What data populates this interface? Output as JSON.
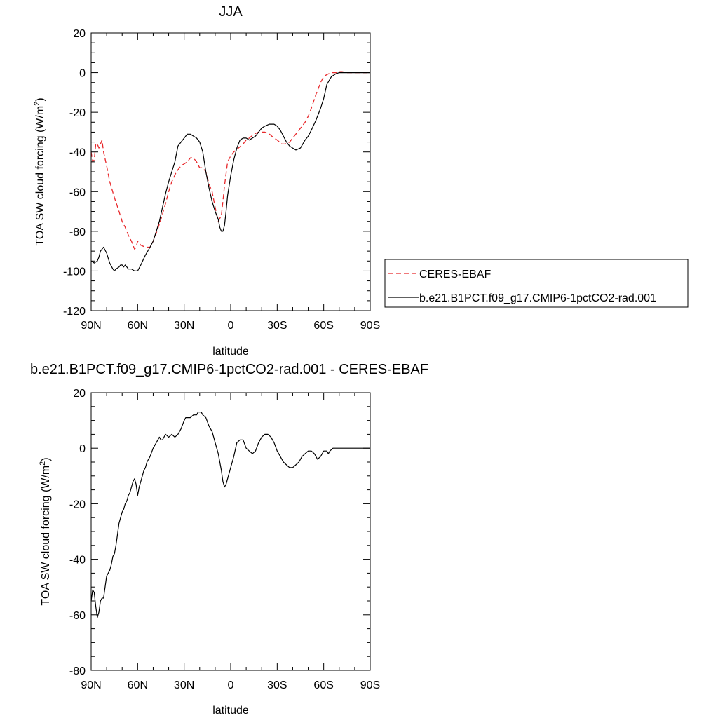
{
  "chart_data": [
    {
      "type": "line",
      "title": "JJA",
      "xlabel": "latitude",
      "ylabel": "TOA SW cloud forcing (W/m²)",
      "ylabel_main": "TOA SW cloud forcing (W/m",
      "ylabel_sup": "2",
      "ylabel_end": ")",
      "xlim": [
        90,
        -90
      ],
      "ylim": [
        -120,
        20
      ],
      "x_ticks": [
        90,
        60,
        30,
        0,
        -30,
        -60,
        -90
      ],
      "x_tick_labels": [
        "90N",
        "60N",
        "30N",
        "0",
        "30S",
        "60S",
        "90S"
      ],
      "y_ticks": [
        20,
        0,
        -20,
        -40,
        -60,
        -80,
        -100,
        -120
      ],
      "y_tick_labels": [
        "20",
        "0",
        "-20",
        "-40",
        "-60",
        "-80",
        "-100",
        "-120"
      ],
      "grid": false,
      "legend_position": "right",
      "series": [
        {
          "name": "CERES-EBAF",
          "color": "#e8282b",
          "dash": "dashed",
          "x": [
            90,
            89,
            88,
            87,
            86,
            85,
            84,
            83,
            82,
            80,
            78,
            75,
            72,
            70,
            68,
            66,
            64,
            62,
            61,
            60,
            58,
            55,
            52,
            50,
            48,
            45,
            42,
            40,
            38,
            35,
            32,
            30,
            28,
            26,
            24,
            22,
            20,
            18,
            16,
            14,
            12,
            10,
            8,
            6,
            5,
            4,
            2,
            0,
            -2,
            -5,
            -8,
            -10,
            -12,
            -15,
            -18,
            -20,
            -22,
            -25,
            -28,
            -30,
            -33,
            -35,
            -38,
            -40,
            -42,
            -45,
            -48,
            -50,
            -52,
            -55,
            -58,
            -60,
            -62,
            -65,
            -68,
            -70,
            -72,
            -75,
            -78,
            -80,
            -82,
            -85,
            -88,
            -90
          ],
          "y": [
            -40,
            -45,
            -44,
            -36,
            -36,
            -38,
            -36,
            -34,
            -40,
            -47,
            -55,
            -63,
            -70,
            -75,
            -78,
            -82,
            -85,
            -89,
            -88,
            -85,
            -87,
            -88,
            -88,
            -85,
            -81,
            -74,
            -66,
            -60,
            -55,
            -50,
            -47,
            -46,
            -45,
            -43,
            -43,
            -45,
            -48,
            -48,
            -50,
            -56,
            -60,
            -68,
            -75,
            -72,
            -65,
            -57,
            -45,
            -42,
            -40,
            -38,
            -36,
            -34,
            -33,
            -31,
            -30,
            -30,
            -30,
            -31,
            -33,
            -34,
            -36,
            -36,
            -35,
            -33,
            -31,
            -28,
            -25,
            -22,
            -18,
            -11,
            -5,
            -2,
            -1,
            0,
            0,
            0.5,
            0.5,
            0,
            0,
            0,
            0,
            0,
            0,
            0
          ]
        },
        {
          "name": "b.e21.B1PCT.f09_g17.CMIP6-1pctCO2-rad.001",
          "color": "#000000",
          "dash": "solid",
          "x": [
            90,
            88,
            86,
            85,
            84,
            82,
            80,
            78,
            76,
            75,
            74,
            72,
            71,
            70,
            69,
            68,
            67,
            66,
            64,
            62,
            60,
            58,
            55,
            52,
            50,
            48,
            46,
            44,
            42,
            40,
            38,
            36,
            34,
            32,
            30,
            28,
            26,
            24,
            22,
            20,
            18,
            16,
            14,
            12,
            10,
            8,
            7,
            6,
            5,
            4,
            3,
            2,
            0,
            -2,
            -4,
            -6,
            -8,
            -10,
            -12,
            -14,
            -16,
            -18,
            -20,
            -22,
            -25,
            -28,
            -30,
            -32,
            -34,
            -36,
            -38,
            -40,
            -42,
            -45,
            -48,
            -50,
            -52,
            -55,
            -58,
            -60,
            -62,
            -65,
            -68,
            -70,
            -72,
            -75,
            -78,
            -80,
            -85,
            -90
          ],
          "y": [
            -95,
            -96,
            -95,
            -93,
            -90,
            -88,
            -91,
            -96,
            -99,
            -100,
            -99,
            -98,
            -97,
            -97,
            -98,
            -97,
            -98,
            -99,
            -99,
            -100,
            -100,
            -97,
            -92,
            -88,
            -85,
            -80,
            -75,
            -68,
            -61,
            -55,
            -50,
            -45,
            -37,
            -35,
            -33,
            -31,
            -31,
            -32,
            -33,
            -35,
            -40,
            -50,
            -58,
            -65,
            -70,
            -74,
            -78,
            -80,
            -80,
            -77,
            -70,
            -62,
            -52,
            -44,
            -38,
            -34,
            -33,
            -33,
            -34,
            -33,
            -32,
            -30,
            -28,
            -27,
            -26,
            -26,
            -27,
            -29,
            -32,
            -35,
            -37,
            -38,
            -39,
            -38,
            -34,
            -32,
            -29,
            -24,
            -18,
            -13,
            -6,
            -2,
            -0.5,
            0,
            0,
            0,
            0,
            0,
            0,
            0
          ]
        }
      ]
    },
    {
      "type": "line",
      "title": "b.e21.B1PCT.f09_g17.CMIP6-1pctCO2-rad.001 - CERES-EBAF",
      "xlabel": "latitude",
      "ylabel": "TOA SW cloud forcing (W/m²)",
      "ylabel_main": "TOA SW cloud forcing (W/m",
      "ylabel_sup": "2",
      "ylabel_end": ")",
      "xlim": [
        90,
        -90
      ],
      "ylim": [
        -80,
        20
      ],
      "x_ticks": [
        90,
        60,
        30,
        0,
        -30,
        -60,
        -90
      ],
      "x_tick_labels": [
        "90N",
        "60N",
        "30N",
        "0",
        "30S",
        "60S",
        "90S"
      ],
      "y_ticks": [
        20,
        0,
        -20,
        -40,
        -60,
        -80
      ],
      "y_tick_labels": [
        "20",
        "0",
        "-20",
        "-40",
        "-60",
        "-80"
      ],
      "grid": false,
      "series": [
        {
          "color": "#000000",
          "dash": "solid",
          "x": [
            90,
            89,
            88,
            87,
            86,
            85,
            84,
            83,
            82,
            81,
            80,
            79,
            78,
            77,
            76,
            75,
            74,
            73,
            72,
            71,
            70,
            69,
            68,
            67,
            66,
            65,
            64,
            63,
            62,
            61,
            60,
            59,
            58,
            57,
            56,
            55,
            54,
            52,
            50,
            48,
            46,
            45,
            44,
            42,
            40,
            38,
            36,
            34,
            32,
            30,
            29,
            28,
            26,
            24,
            22,
            21,
            20,
            19,
            18,
            16,
            14,
            12,
            10,
            8,
            6,
            5,
            4,
            3,
            2,
            0,
            -2,
            -4,
            -6,
            -8,
            -10,
            -12,
            -14,
            -16,
            -18,
            -20,
            -22,
            -24,
            -26,
            -28,
            -30,
            -32,
            -34,
            -36,
            -38,
            -40,
            -42,
            -44,
            -46,
            -48,
            -50,
            -52,
            -54,
            -56,
            -58,
            -60,
            -61,
            -62,
            -63,
            -64,
            -66,
            -68,
            -70,
            -72,
            -74,
            -75,
            -76,
            -78,
            -80,
            -82,
            -85,
            -88,
            -90
          ],
          "y": [
            -55,
            -51,
            -52,
            -57,
            -61,
            -59,
            -55,
            -54,
            -54,
            -50,
            -46,
            -45,
            -44,
            -42,
            -39,
            -38,
            -35,
            -31,
            -27,
            -25,
            -23,
            -22,
            -20,
            -19,
            -17,
            -16,
            -14,
            -12,
            -11,
            -13,
            -17,
            -14,
            -12,
            -10,
            -8,
            -7,
            -5,
            -3,
            0,
            2,
            4,
            3,
            3,
            5,
            4,
            5,
            4,
            5,
            7,
            10,
            11,
            11,
            11,
            12,
            12,
            13,
            13,
            13,
            12,
            11,
            8,
            6,
            2,
            -2,
            -8,
            -12,
            -14,
            -13,
            -11,
            -7,
            -3,
            2,
            3,
            3,
            0,
            -1,
            -2,
            -1,
            2,
            4,
            5,
            5,
            4,
            2,
            -1,
            -3,
            -5,
            -6,
            -7,
            -7,
            -6,
            -5,
            -3,
            -2,
            -1,
            -1,
            -2,
            -4,
            -3,
            -1,
            -1,
            -1,
            -2,
            -1,
            0,
            0,
            0,
            0,
            0,
            0,
            0,
            0,
            0,
            0,
            0,
            0,
            0
          ]
        }
      ]
    }
  ]
}
